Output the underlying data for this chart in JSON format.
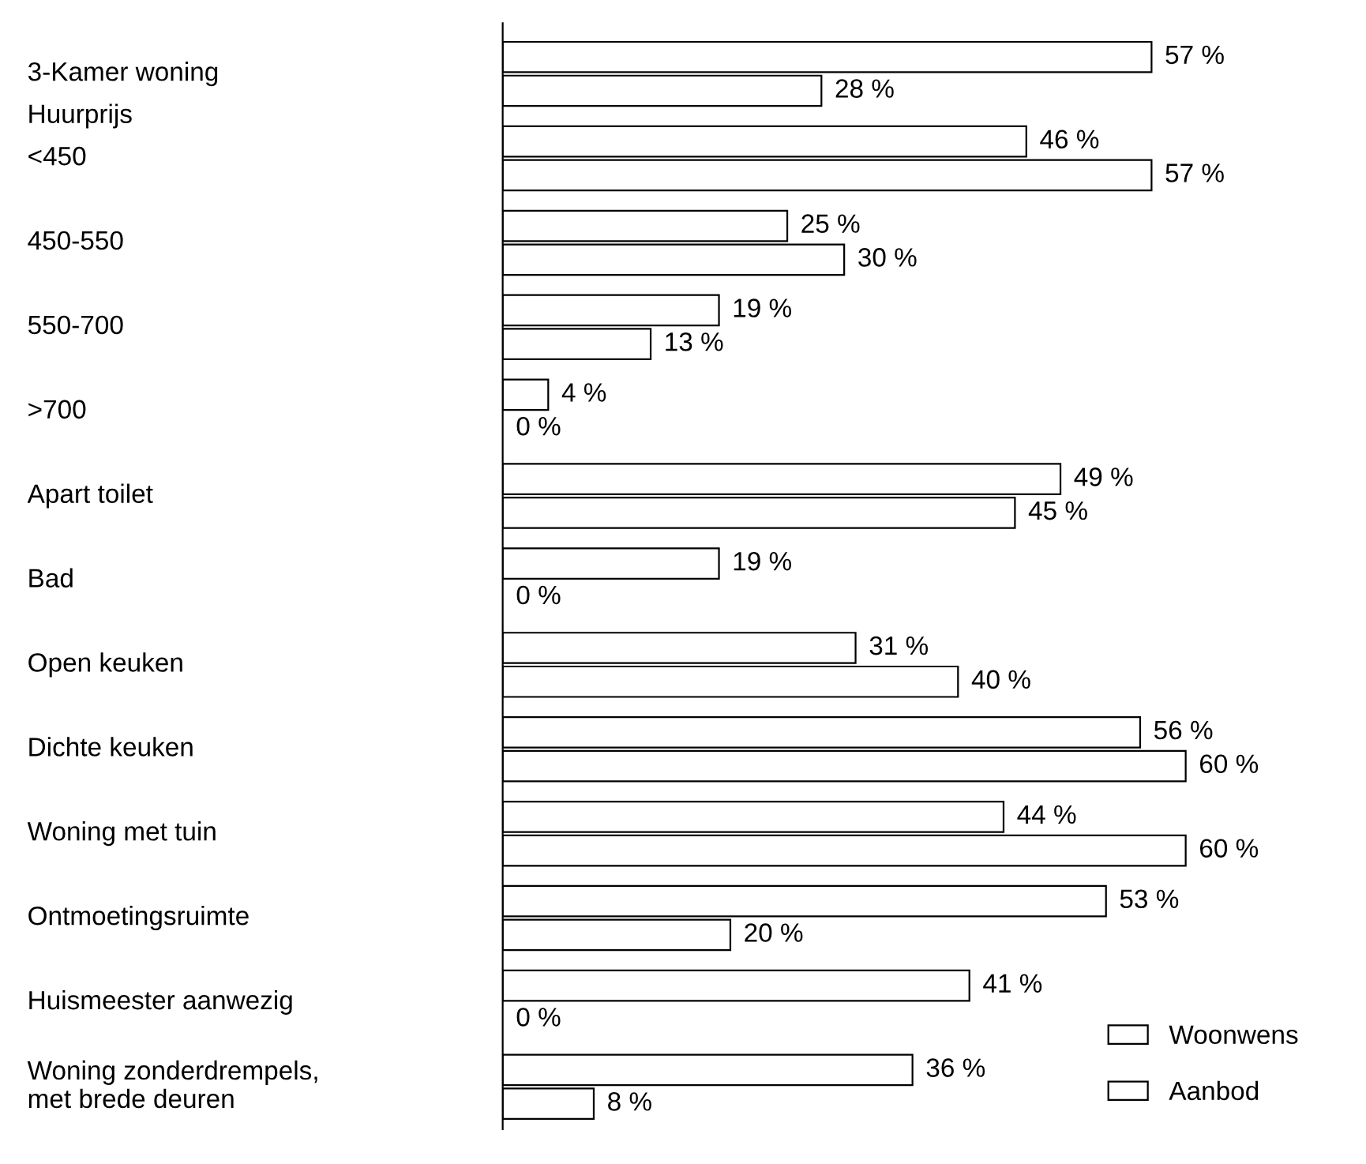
{
  "chart_data": {
    "type": "bar",
    "orientation": "horizontal",
    "categories": [
      "3-Kamer woning",
      "<450",
      "450-550",
      "550-700",
      ">700",
      "Apart toilet",
      "Bad",
      "Open keuken",
      "Dichte keuken",
      "Woning met tuin",
      "Ontmoetingsruimte",
      "Huismeester aanwezig",
      "Woning zonderdrempels,\nmet brede deuren"
    ],
    "series": [
      {
        "name": "Woonwens",
        "color": "#ffffff",
        "values": [
          57,
          46,
          25,
          19,
          4,
          49,
          19,
          31,
          56,
          44,
          53,
          41,
          36
        ],
        "value_labels": [
          "57 %",
          "46 %",
          "25 %",
          "19 %",
          "4 %",
          "49 %",
          "19 %",
          "31 %",
          "56 %",
          "44 %",
          "53 %",
          "41 %",
          "36 %"
        ]
      },
      {
        "name": "Aanbod",
        "color": "#ffffff",
        "values": [
          28,
          57,
          30,
          13,
          0,
          45,
          0,
          40,
          60,
          60,
          20,
          0,
          8
        ],
        "value_labels": [
          "28 %",
          "57 %",
          "30 %",
          "13 %",
          "0 %",
          "45 %",
          "0 %",
          "40 %",
          "60 %",
          "60 %",
          "20 %",
          "0 %",
          "8 %"
        ]
      }
    ],
    "annotations": [
      "Huurprijs"
    ],
    "legend": "bottom right"
  }
}
